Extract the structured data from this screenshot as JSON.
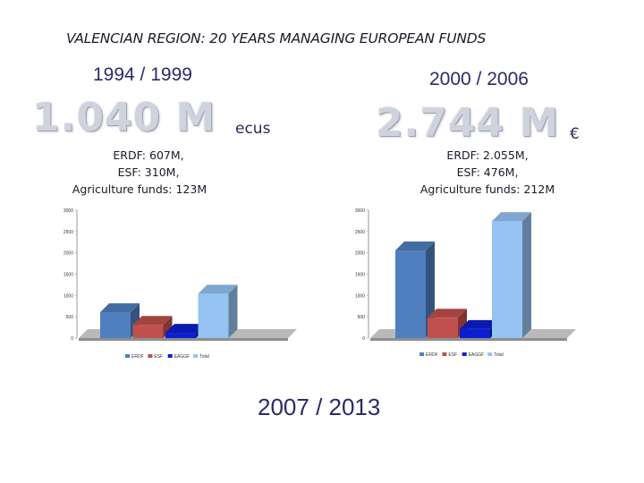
{
  "slide": {
    "title": "VALENCIAN REGION: 20 YEARS MANAGING EUROPEAN FUNDS",
    "period_1": "1994 / 1999",
    "period_2": "2000 / 2006",
    "period_3": "2007 / 2013",
    "amount_1": "1.040 M",
    "unit_1": "ecus",
    "amount_2": "2.744 M",
    "unit_2": "€",
    "breakdown_1": [
      "ERDF: 607M,",
      "ESF: 310M,",
      "Agriculture funds: 123M"
    ],
    "breakdown_2": [
      "ERDF: 2.055M,",
      "ESF: 476M,",
      "Agriculture funds: 212M"
    ]
  },
  "chart_data": [
    {
      "type": "bar",
      "title": "",
      "categories": [
        "ERDF",
        "ESF",
        "EAGGF",
        "Total"
      ],
      "values": [
        607,
        310,
        123,
        1040
      ],
      "colors": [
        "#4f7fbf",
        "#c0504d",
        "#0a1fd0",
        "#95c3f2"
      ],
      "ylim": [
        0,
        3000
      ],
      "yticks": [
        0,
        500,
        1000,
        1500,
        2000,
        2500,
        3000
      ],
      "legend": "bottom",
      "grid": false
    },
    {
      "type": "bar",
      "title": "",
      "categories": [
        "ERDF",
        "ESF",
        "EAGGF",
        "Total"
      ],
      "values": [
        2055,
        476,
        212,
        2744
      ],
      "colors": [
        "#4f7fbf",
        "#c0504d",
        "#0a1fd0",
        "#95c3f2"
      ],
      "ylim": [
        0,
        3000
      ],
      "yticks": [
        0,
        500,
        1000,
        1500,
        2000,
        2500,
        3000
      ],
      "legend": "bottom",
      "grid": false
    }
  ]
}
